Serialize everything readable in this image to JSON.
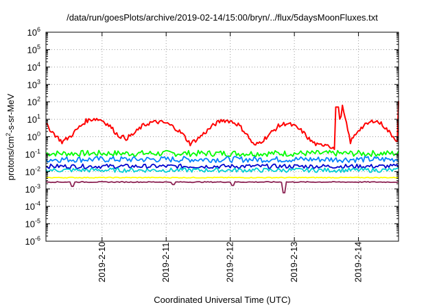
{
  "chart_data": {
    "type": "line",
    "title": "/data/run/goesPlots/archive/2019-02-14/15:00/bryn/../flux/5daysMoonFluxes.txt",
    "xlabel": "Coordinated Universal Time (UTC)",
    "ylabel": "protons/cm2-s-sr-MeV",
    "ylabel_parts": {
      "pre": "protons/cm",
      "sup": "2",
      "post": "-s-sr-MeV"
    },
    "yscale": "log",
    "ylim_exponents": [
      -6,
      6
    ],
    "y_tick_base": "10",
    "y_tick_exponents": [
      "-6",
      "-5",
      "-4",
      "-3",
      "-2",
      "-1",
      "0",
      "1",
      "2",
      "3",
      "4",
      "5",
      "6"
    ],
    "xlim": [
      "2019-02-09 03:00",
      "2019-02-14 15:00"
    ],
    "x_ticks": [
      "2019-2-10",
      "2019-2-11",
      "2019-2-12",
      "2019-2-13",
      "2019-2-14"
    ],
    "grid": true,
    "series": [
      {
        "color": "#ff0000",
        "x_hours": [
          0,
          3,
          6,
          9,
          12,
          15,
          18,
          21,
          24,
          27,
          30,
          33,
          36,
          39,
          42,
          45,
          48,
          51,
          54,
          57,
          60,
          63,
          66,
          69,
          72,
          75,
          78,
          81,
          84,
          87,
          90,
          93,
          96,
          99,
          102,
          105,
          108,
          111,
          114,
          117,
          120,
          123,
          126,
          129,
          132
        ],
        "values": [
          5,
          1.5,
          0.5,
          1,
          3,
          8,
          11,
          9,
          4,
          1.2,
          0.8,
          1.5,
          4,
          6.5,
          7,
          6,
          3.5,
          1.5,
          0.4,
          0.8,
          2,
          5,
          9,
          8,
          5,
          1.5,
          0.3,
          0.6,
          1.5,
          4,
          6,
          4,
          2,
          0.6,
          0.3,
          0.4,
          0.2,
          50,
          0.5,
          2.5,
          5,
          9,
          5,
          1.5,
          0.5
        ],
        "spikes": [
          [
            116,
            50
          ],
          [
            139.5,
            110
          ]
        ]
      },
      {
        "color": "#00ff00",
        "level": 0.11,
        "dips": []
      },
      {
        "color": "#0080ff",
        "level": 0.05,
        "dips": []
      },
      {
        "color": "#0000cd",
        "level": 0.02,
        "dips": []
      },
      {
        "color": "#00ced1",
        "level": 0.012,
        "dips": []
      },
      {
        "color": "#ffff00",
        "level": 0.0045,
        "dips": []
      },
      {
        "color": "#8b2252",
        "level": 0.0025,
        "dips": [
          [
            10,
            0.0014
          ],
          [
            48,
            0.0018
          ],
          [
            70,
            0.0016
          ],
          [
            89,
            0.0006
          ]
        ]
      }
    ]
  }
}
